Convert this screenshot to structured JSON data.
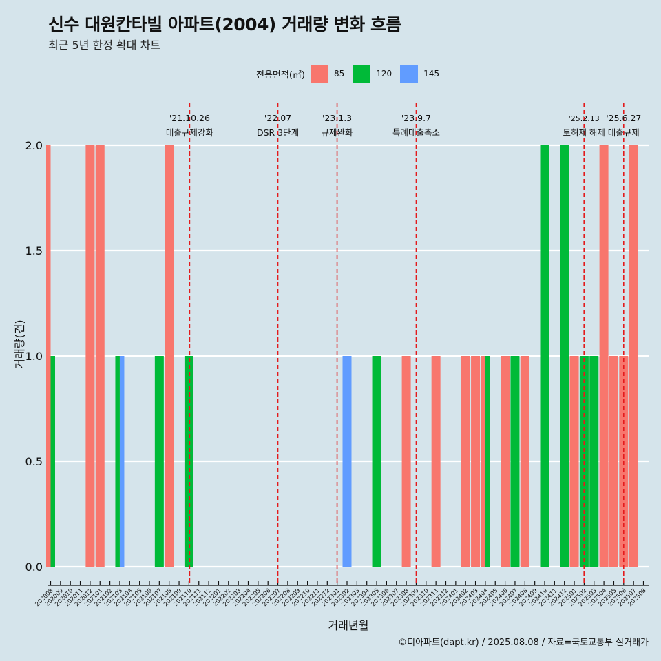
{
  "title": "신수 대원칸타빌 아파트(2004) 거래량 변화 흐름",
  "subtitle": "최근 5년 한정 확대 차트",
  "caption": "©디아파트(dapt.kr) / 2025.08.08 / 자료=국토교통부 실거래가",
  "legend": {
    "title": "전용면적(㎡)",
    "items": [
      {
        "label": "85",
        "color": "#f8766d"
      },
      {
        "label": "120",
        "color": "#00ba38"
      },
      {
        "label": "145",
        "color": "#619cff"
      }
    ]
  },
  "chart_data": {
    "type": "bar",
    "xlabel": "거래년월",
    "ylabel": "거래량(건)",
    "ylim": [
      0,
      2
    ],
    "yticks": [
      "0.0",
      "0.5",
      "1.0",
      "1.5",
      "2.0"
    ],
    "grid": true,
    "legend_position": "top",
    "categories": [
      "202008",
      "202009",
      "202010",
      "202011",
      "202012",
      "202101",
      "202102",
      "202103",
      "202104",
      "202105",
      "202106",
      "202107",
      "202108",
      "202109",
      "202110",
      "202111",
      "202112",
      "202201",
      "202202",
      "202203",
      "202204",
      "202205",
      "202206",
      "202207",
      "202208",
      "202209",
      "202210",
      "202211",
      "202212",
      "202301",
      "202302",
      "202303",
      "202304",
      "202305",
      "202306",
      "202307",
      "202308",
      "202309",
      "202310",
      "202311",
      "202312",
      "202401",
      "202402",
      "202403",
      "202404",
      "202405",
      "202406",
      "202407",
      "202408",
      "202409",
      "202410",
      "202411",
      "202412",
      "202501",
      "202502",
      "202503",
      "202504",
      "202505",
      "202506",
      "202507",
      "202508"
    ],
    "series": [
      {
        "name": "85",
        "color": "#f8766d",
        "points": [
          {
            "x": "202008",
            "y": 2
          },
          {
            "x": "202012",
            "y": 2
          },
          {
            "x": "202101",
            "y": 2
          },
          {
            "x": "202108",
            "y": 2
          },
          {
            "x": "202308",
            "y": 1
          },
          {
            "x": "202311",
            "y": 1
          },
          {
            "x": "202402",
            "y": 1
          },
          {
            "x": "202403",
            "y": 1
          },
          {
            "x": "202404",
            "y": 1
          },
          {
            "x": "202406",
            "y": 1
          },
          {
            "x": "202408",
            "y": 1
          },
          {
            "x": "202501",
            "y": 1
          },
          {
            "x": "202504",
            "y": 2
          },
          {
            "x": "202505",
            "y": 1
          },
          {
            "x": "202506",
            "y": 1
          },
          {
            "x": "202507",
            "y": 2
          }
        ]
      },
      {
        "name": "120",
        "color": "#00ba38",
        "points": [
          {
            "x": "202008",
            "y": 1
          },
          {
            "x": "202103",
            "y": 1
          },
          {
            "x": "202107",
            "y": 1
          },
          {
            "x": "202110",
            "y": 1
          },
          {
            "x": "202305",
            "y": 1
          },
          {
            "x": "202404",
            "y": 1
          },
          {
            "x": "202407",
            "y": 1
          },
          {
            "x": "202410",
            "y": 2
          },
          {
            "x": "202412",
            "y": 2
          },
          {
            "x": "202502",
            "y": 1
          },
          {
            "x": "202503",
            "y": 1
          }
        ]
      },
      {
        "name": "145",
        "color": "#619cff",
        "points": [
          {
            "x": "202103",
            "y": 1
          },
          {
            "x": "202302",
            "y": 1
          }
        ]
      }
    ],
    "annotations": [
      {
        "x": "202110",
        "date": "'21.10.26",
        "label": "대출규제강화"
      },
      {
        "x": "202207",
        "date": "'22.07",
        "label": "DSR 3단계"
      },
      {
        "x": "202301",
        "date": "'23.1.3",
        "label": "규제완화"
      },
      {
        "x": "202309",
        "date": "'23.9.7",
        "label": "특례대출축소"
      },
      {
        "x": "202502",
        "date": "'25.2.13",
        "label": "토허제 해제"
      },
      {
        "x": "202506",
        "date": "'25.6.27",
        "label": "대출규제"
      }
    ]
  }
}
